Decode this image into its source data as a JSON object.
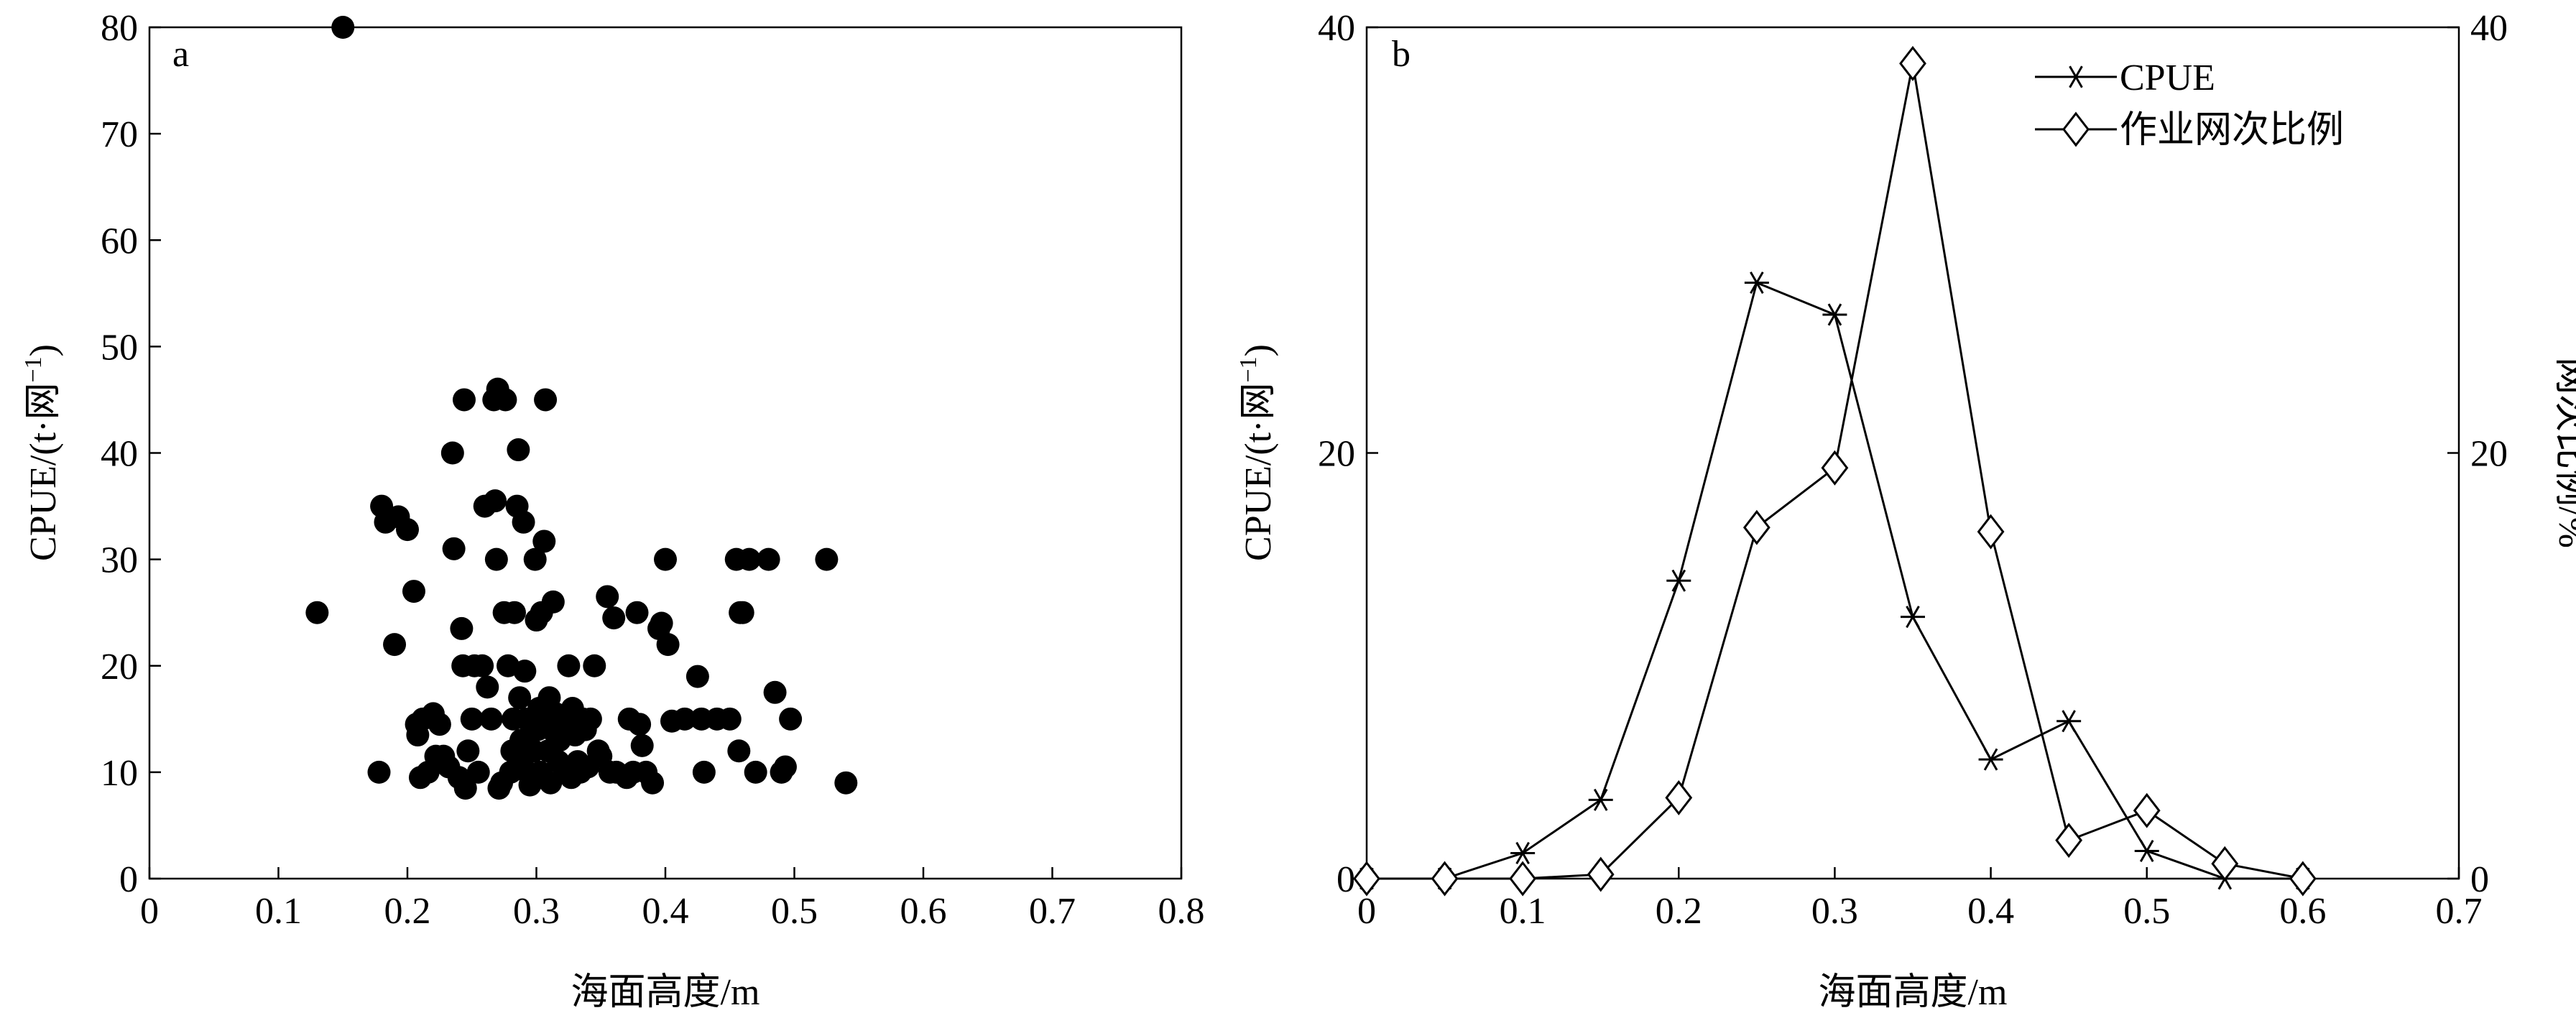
{
  "chart_data": [
    {
      "type": "scatter",
      "panel_label": "a",
      "xlabel": "海面高度/m",
      "ylabel_main": "CPUE/(t·网",
      "ylabel_exp": "−1",
      "ylabel_close": ")",
      "xlim": [
        0,
        0.8
      ],
      "ylim": [
        0,
        80
      ],
      "xticks": [
        0,
        0.1,
        0.2,
        0.3,
        0.4,
        0.5,
        0.6,
        0.7,
        0.8
      ],
      "xtick_labels": [
        "0",
        "0.1",
        "0.2",
        "0.3",
        "0.4",
        "0.5",
        "0.6",
        "0.7",
        "0.8"
      ],
      "yticks": [
        0,
        10,
        20,
        30,
        40,
        50,
        60,
        70,
        80
      ],
      "ytick_labels": [
        "0",
        "10",
        "20",
        "30",
        "40",
        "50",
        "60",
        "70",
        "80"
      ],
      "marker_color": "#000000",
      "points": [
        [
          0.15,
          80
        ],
        [
          0.13,
          25
        ],
        [
          0.178,
          10
        ],
        [
          0.18,
          35
        ],
        [
          0.183,
          33.5
        ],
        [
          0.19,
          22
        ],
        [
          0.193,
          34
        ],
        [
          0.2,
          32.8
        ],
        [
          0.205,
          27
        ],
        [
          0.207,
          14.5
        ],
        [
          0.208,
          13.5
        ],
        [
          0.21,
          9.5
        ],
        [
          0.212,
          15
        ],
        [
          0.216,
          10
        ],
        [
          0.22,
          15.5
        ],
        [
          0.222,
          11.5
        ],
        [
          0.225,
          14.5
        ],
        [
          0.228,
          11.5
        ],
        [
          0.232,
          10.5
        ],
        [
          0.235,
          40
        ],
        [
          0.236,
          31
        ],
        [
          0.24,
          9.5
        ],
        [
          0.242,
          23.5
        ],
        [
          0.243,
          20
        ],
        [
          0.244,
          45
        ],
        [
          0.245,
          8.5
        ],
        [
          0.247,
          12
        ],
        [
          0.25,
          15
        ],
        [
          0.252,
          20
        ],
        [
          0.255,
          10
        ],
        [
          0.258,
          20
        ],
        [
          0.26,
          35
        ],
        [
          0.262,
          18
        ],
        [
          0.265,
          15
        ],
        [
          0.267,
          45
        ],
        [
          0.268,
          35.5
        ],
        [
          0.269,
          30
        ],
        [
          0.27,
          46
        ],
        [
          0.271,
          8.5
        ],
        [
          0.273,
          9
        ],
        [
          0.275,
          25
        ],
        [
          0.276,
          45
        ],
        [
          0.278,
          20
        ],
        [
          0.28,
          10
        ],
        [
          0.281,
          12
        ],
        [
          0.282,
          15
        ],
        [
          0.283,
          25
        ],
        [
          0.285,
          35
        ],
        [
          0.286,
          40.3
        ],
        [
          0.287,
          17
        ],
        [
          0.288,
          13
        ],
        [
          0.289,
          11
        ],
        [
          0.29,
          33.5
        ],
        [
          0.291,
          19.5
        ],
        [
          0.292,
          15
        ],
        [
          0.293,
          10
        ],
        [
          0.295,
          8.8
        ],
        [
          0.297,
          15
        ],
        [
          0.298,
          12
        ],
        [
          0.299,
          30
        ],
        [
          0.3,
          24.3
        ],
        [
          0.301,
          14
        ],
        [
          0.302,
          16
        ],
        [
          0.303,
          10
        ],
        [
          0.304,
          25
        ],
        [
          0.305,
          9.5
        ],
        [
          0.306,
          31.7
        ],
        [
          0.307,
          45
        ],
        [
          0.308,
          15
        ],
        [
          0.309,
          12
        ],
        [
          0.31,
          17
        ],
        [
          0.311,
          9
        ],
        [
          0.312,
          14
        ],
        [
          0.313,
          26
        ],
        [
          0.315,
          15.5
        ],
        [
          0.317,
          11
        ],
        [
          0.318,
          13
        ],
        [
          0.32,
          15
        ],
        [
          0.322,
          10
        ],
        [
          0.323,
          15
        ],
        [
          0.325,
          20
        ],
        [
          0.327,
          9.5
        ],
        [
          0.328,
          16
        ],
        [
          0.33,
          13.5
        ],
        [
          0.332,
          11
        ],
        [
          0.334,
          10
        ],
        [
          0.336,
          15
        ],
        [
          0.338,
          14
        ],
        [
          0.34,
          10.5
        ],
        [
          0.342,
          15
        ],
        [
          0.345,
          20
        ],
        [
          0.348,
          12
        ],
        [
          0.35,
          11.5
        ],
        [
          0.355,
          26.5
        ],
        [
          0.357,
          10
        ],
        [
          0.36,
          24.5
        ],
        [
          0.362,
          10
        ],
        [
          0.37,
          9.5
        ],
        [
          0.372,
          15
        ],
        [
          0.375,
          10
        ],
        [
          0.378,
          25
        ],
        [
          0.38,
          14.5
        ],
        [
          0.382,
          12.5
        ],
        [
          0.385,
          10
        ],
        [
          0.39,
          9
        ],
        [
          0.395,
          23.5
        ],
        [
          0.397,
          24
        ],
        [
          0.4,
          30
        ],
        [
          0.402,
          22
        ],
        [
          0.405,
          14.8
        ],
        [
          0.415,
          15
        ],
        [
          0.425,
          19
        ],
        [
          0.428,
          15
        ],
        [
          0.43,
          10
        ],
        [
          0.44,
          15
        ],
        [
          0.45,
          15
        ],
        [
          0.455,
          30
        ],
        [
          0.457,
          12
        ],
        [
          0.458,
          25
        ],
        [
          0.46,
          25
        ],
        [
          0.465,
          30
        ],
        [
          0.47,
          10
        ],
        [
          0.48,
          30
        ],
        [
          0.485,
          17.5
        ],
        [
          0.49,
          10
        ],
        [
          0.493,
          10.5
        ],
        [
          0.497,
          15
        ],
        [
          0.525,
          30
        ],
        [
          0.54,
          9
        ]
      ]
    },
    {
      "type": "line",
      "panel_label": "b",
      "xlabel": "海面高度/m",
      "ylabel_main": "CPUE/(t·网",
      "ylabel_exp": "−1",
      "ylabel_close": ")",
      "y2label": "网次比例/%",
      "xlim": [
        0,
        0.7
      ],
      "ylim": [
        0,
        40
      ],
      "y2lim": [
        0,
        40
      ],
      "xticks": [
        0,
        0.1,
        0.2,
        0.3,
        0.4,
        0.5,
        0.6,
        0.7
      ],
      "xtick_labels": [
        "0",
        "0.1",
        "0.2",
        "0.3",
        "0.4",
        "0.5",
        "0.6",
        "0.7"
      ],
      "yticks": [
        0,
        20,
        40
      ],
      "ytick_labels": [
        "0",
        "20",
        "40"
      ],
      "y2ticks": [
        0,
        20,
        40
      ],
      "y2tick_labels": [
        "0",
        "20",
        "40"
      ],
      "legend_position": "top-right",
      "x": [
        0,
        0.05,
        0.1,
        0.15,
        0.2,
        0.25,
        0.3,
        0.35,
        0.4,
        0.45,
        0.5,
        0.55,
        0.6
      ],
      "series": [
        {
          "name": "CPUE",
          "marker": "asterisk",
          "axis": "left",
          "values": [
            0,
            0,
            1.2,
            3.7,
            14,
            28,
            26.5,
            12.3,
            5.6,
            7.4,
            1.3,
            0,
            0
          ]
        },
        {
          "name": "作业网次比例",
          "marker": "diamond",
          "axis": "right",
          "values": [
            0,
            0,
            0,
            0.2,
            3.8,
            16.5,
            19.3,
            38.3,
            16.3,
            1.8,
            3.2,
            0.7,
            0
          ]
        }
      ]
    }
  ]
}
